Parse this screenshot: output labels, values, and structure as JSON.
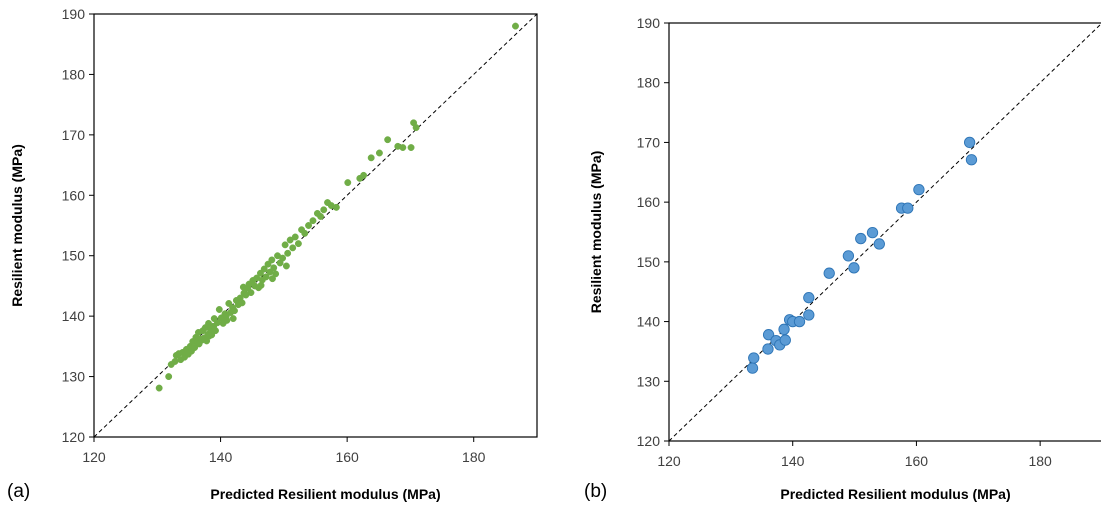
{
  "chart_data": [
    {
      "type": "scatter",
      "panel_label": "(a)",
      "xlabel": "Predicted Resilient modulus (MPa)",
      "ylabel": "Resilient modulus (MPa)",
      "xlim": [
        120,
        190
      ],
      "ylim": [
        120,
        190
      ],
      "xticks": [
        120,
        140,
        160,
        180
      ],
      "yticks": [
        120,
        130,
        140,
        150,
        160,
        170,
        180,
        190
      ],
      "grid": false,
      "legend": "none",
      "reference_line": "y=x",
      "marker_color": "#70AD47",
      "marker_edge": "#70AD47",
      "points": [
        [
          130.3,
          128.1
        ],
        [
          131.8,
          130.0
        ],
        [
          132.2,
          132.0
        ],
        [
          132.8,
          132.5
        ],
        [
          133.0,
          133.5
        ],
        [
          133.4,
          133.8
        ],
        [
          133.7,
          132.8
        ],
        [
          134.0,
          134.0
        ],
        [
          134.3,
          133.2
        ],
        [
          134.6,
          134.5
        ],
        [
          134.9,
          133.7
        ],
        [
          135.2,
          135.0
        ],
        [
          135.4,
          134.2
        ],
        [
          135.6,
          135.8
        ],
        [
          135.9,
          134.8
        ],
        [
          136.1,
          136.5
        ],
        [
          136.3,
          135.7
        ],
        [
          136.5,
          137.3
        ],
        [
          136.8,
          136.2
        ],
        [
          137.0,
          136.0
        ],
        [
          137.2,
          137.6
        ],
        [
          137.4,
          136.4
        ],
        [
          137.6,
          138.1
        ],
        [
          137.8,
          135.9
        ],
        [
          138.0,
          137.0
        ],
        [
          138.2,
          136.7
        ],
        [
          138.4,
          137.8
        ],
        [
          138.6,
          136.9
        ],
        [
          138.9,
          138.3
        ],
        [
          139.2,
          137.6
        ],
        [
          139.5,
          138.9
        ],
        [
          139.8,
          141.1
        ],
        [
          140.1,
          139.7
        ],
        [
          140.4,
          138.8
        ],
        [
          140.7,
          140.4
        ],
        [
          141.0,
          139.3
        ],
        [
          141.3,
          142.1
        ],
        [
          141.6,
          140.6
        ],
        [
          141.9,
          141.4
        ],
        [
          142.2,
          140.9
        ],
        [
          142.5,
          142.6
        ],
        [
          142.8,
          141.9
        ],
        [
          143.1,
          143.0
        ],
        [
          143.4,
          142.2
        ],
        [
          143.7,
          143.8
        ],
        [
          144.0,
          143.5
        ],
        [
          144.3,
          144.6
        ],
        [
          144.5,
          145.3
        ],
        [
          144.8,
          143.9
        ],
        [
          145.1,
          145.9
        ],
        [
          145.4,
          145.0
        ],
        [
          145.7,
          146.3
        ],
        [
          146.0,
          144.7
        ],
        [
          146.3,
          147.1
        ],
        [
          146.6,
          146.0
        ],
        [
          146.9,
          147.8
        ],
        [
          147.2,
          146.5
        ],
        [
          147.5,
          148.6
        ],
        [
          147.8,
          147.3
        ],
        [
          148.1,
          149.3
        ],
        [
          148.4,
          148.0
        ],
        [
          148.7,
          147.0
        ],
        [
          149.0,
          150.0
        ],
        [
          149.4,
          148.8
        ],
        [
          149.8,
          149.6
        ],
        [
          150.2,
          151.8
        ],
        [
          150.6,
          150.4
        ],
        [
          151.0,
          152.6
        ],
        [
          151.4,
          151.3
        ],
        [
          151.8,
          153.1
        ],
        [
          152.3,
          152.0
        ],
        [
          152.8,
          154.3
        ],
        [
          153.3,
          153.7
        ],
        [
          153.9,
          155.0
        ],
        [
          154.6,
          155.8
        ],
        [
          155.3,
          157.0
        ],
        [
          155.8,
          156.5
        ],
        [
          156.3,
          157.6
        ],
        [
          156.9,
          158.8
        ],
        [
          157.5,
          158.3
        ],
        [
          158.3,
          158.0
        ],
        [
          160.1,
          162.1
        ],
        [
          162.0,
          162.8
        ],
        [
          162.6,
          163.3
        ],
        [
          163.8,
          166.2
        ],
        [
          165.1,
          167.0
        ],
        [
          166.4,
          169.2
        ],
        [
          168.0,
          168.1
        ],
        [
          168.8,
          167.9
        ],
        [
          170.1,
          167.9
        ],
        [
          170.5,
          172.0
        ],
        [
          170.9,
          171.2
        ],
        [
          186.6,
          188.0
        ],
        [
          139.0,
          139.6
        ],
        [
          140.9,
          140.0
        ],
        [
          142.0,
          139.6
        ],
        [
          143.6,
          144.8
        ],
        [
          146.4,
          145.1
        ],
        [
          148.2,
          146.2
        ],
        [
          150.4,
          148.3
        ],
        [
          136.6,
          135.4
        ],
        [
          138.1,
          138.8
        ]
      ]
    },
    {
      "type": "scatter",
      "panel_label": "(b)",
      "xlabel": "Predicted Resilient modulus (MPa)",
      "ylabel": "Resilient modulus (MPa)",
      "xlim": [
        120,
        190
      ],
      "ylim": [
        120,
        190
      ],
      "xticks": [
        120,
        140,
        160,
        180
      ],
      "yticks": [
        120,
        130,
        140,
        150,
        160,
        170,
        180,
        190
      ],
      "grid": false,
      "legend": "none",
      "reference_line": "y=x",
      "marker_color": "#5B9BD5",
      "marker_edge": "#2E75B6",
      "points": [
        [
          133.5,
          132.2
        ],
        [
          133.7,
          133.9
        ],
        [
          136.0,
          135.4
        ],
        [
          136.1,
          137.8
        ],
        [
          137.3,
          136.8
        ],
        [
          137.9,
          136.1
        ],
        [
          138.6,
          138.7
        ],
        [
          138.8,
          136.9
        ],
        [
          139.5,
          140.3
        ],
        [
          140.0,
          140.0
        ],
        [
          141.1,
          140.0
        ],
        [
          142.6,
          141.1
        ],
        [
          142.6,
          144.0
        ],
        [
          145.9,
          148.1
        ],
        [
          149.0,
          151.0
        ],
        [
          149.9,
          149.0
        ],
        [
          151.0,
          153.9
        ],
        [
          152.9,
          154.9
        ],
        [
          154.0,
          153.0
        ],
        [
          157.6,
          159.0
        ],
        [
          158.6,
          159.0
        ],
        [
          160.4,
          162.1
        ],
        [
          168.6,
          170.0
        ],
        [
          168.9,
          167.1
        ]
      ]
    }
  ]
}
